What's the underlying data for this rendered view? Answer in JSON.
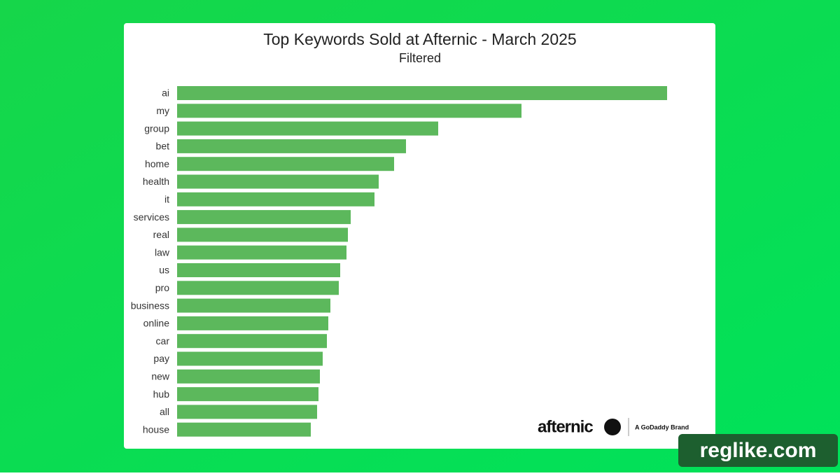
{
  "chart_data": {
    "type": "barh",
    "title": "Top Keywords Sold at Afternic - March 2025",
    "subtitle": "Filtered",
    "categories": [
      "ai",
      "my",
      "group",
      "bet",
      "home",
      "health",
      "it",
      "services",
      "real",
      "law",
      "us",
      "pro",
      "business",
      "online",
      "car",
      "pay",
      "new",
      "hub",
      "all",
      "house"
    ],
    "values": [
      700,
      492,
      373,
      327,
      310,
      288,
      282,
      248,
      244,
      242,
      233,
      231,
      219,
      216,
      214,
      208,
      204,
      202,
      200,
      191
    ],
    "color": "#5cb85c"
  },
  "branding": {
    "logo": "afternic",
    "tagline": "A GoDaddy Brand"
  },
  "watermark": "reglike.com"
}
